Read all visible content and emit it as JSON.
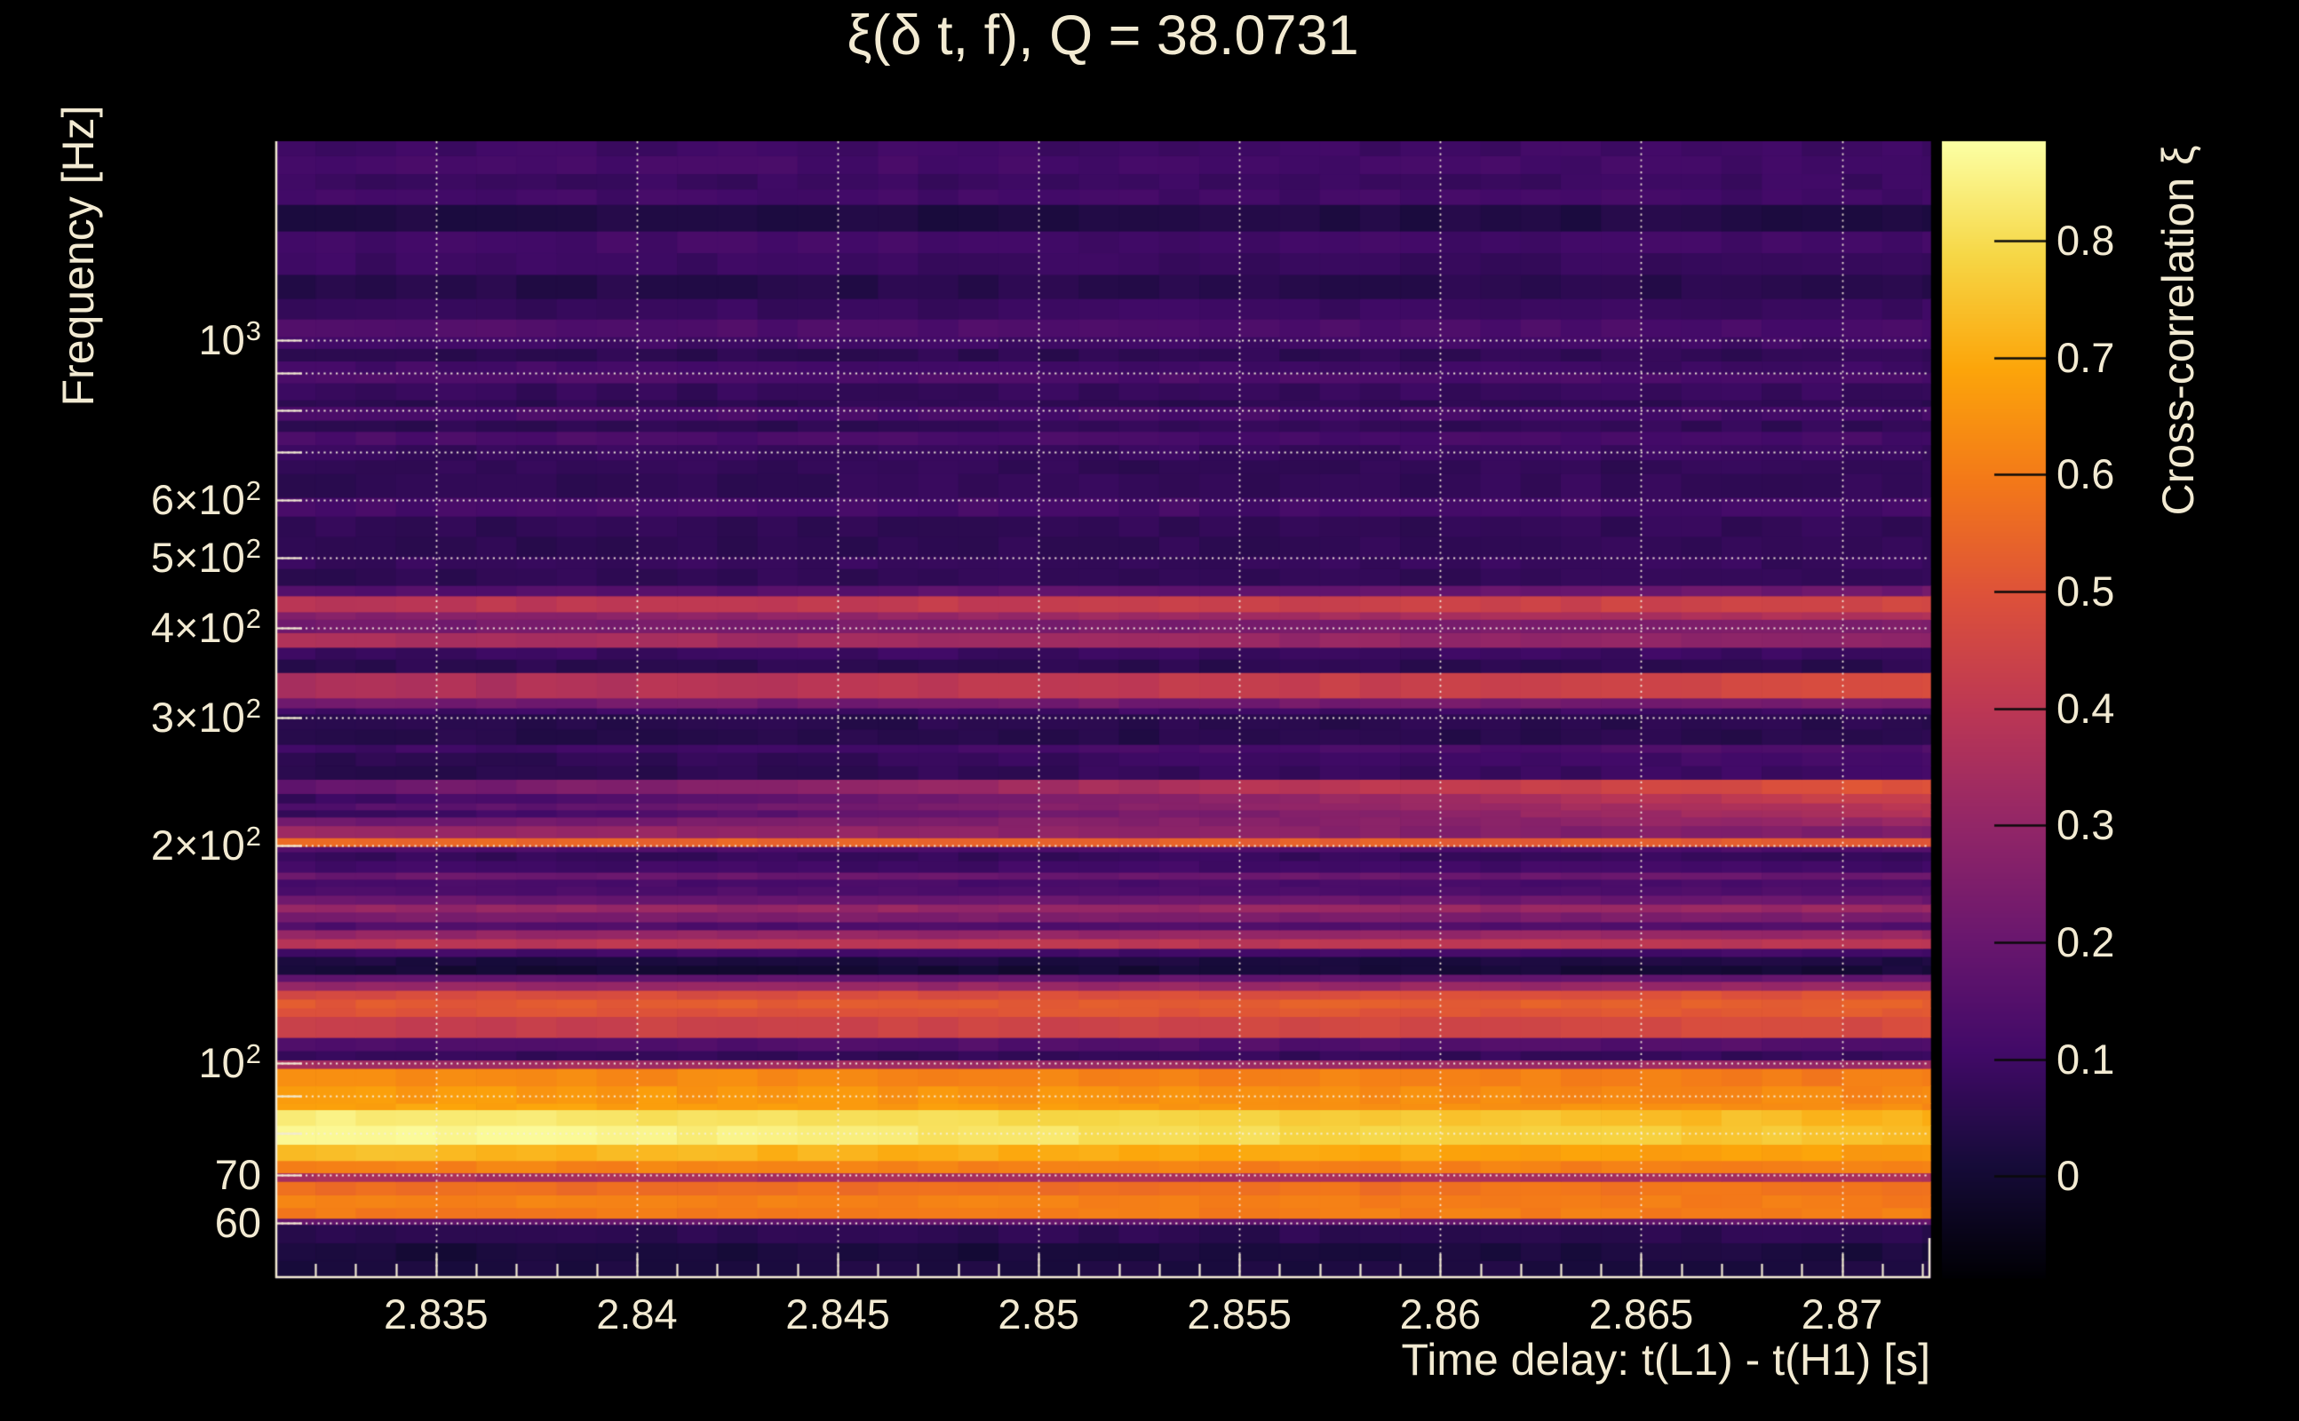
{
  "title": "ξ(δ t, f), Q = 38.0731",
  "x_axis": {
    "label": "Time delay: t(L1) - t(H1) [s]",
    "range": [
      2.831,
      2.8722
    ],
    "minor_tick_step": 0.001,
    "ticks": [
      {
        "value": 2.835,
        "label": "2.835"
      },
      {
        "value": 2.84,
        "label": "2.84"
      },
      {
        "value": 2.845,
        "label": "2.845"
      },
      {
        "value": 2.85,
        "label": "2.85"
      },
      {
        "value": 2.855,
        "label": "2.855"
      },
      {
        "value": 2.86,
        "label": "2.86"
      },
      {
        "value": 2.865,
        "label": "2.865"
      },
      {
        "value": 2.87,
        "label": "2.87"
      }
    ]
  },
  "y_axis": {
    "label": "Frequency [Hz]",
    "scale": "log",
    "range": [
      50.4,
      1884
    ],
    "ticks": [
      {
        "value": 1000,
        "mantissa": "10",
        "exp": "3"
      },
      {
        "value": 600,
        "mantissa": "6×10",
        "exp": "2"
      },
      {
        "value": 500,
        "mantissa": "5×10",
        "exp": "2"
      },
      {
        "value": 400,
        "mantissa": "4×10",
        "exp": "2"
      },
      {
        "value": 300,
        "mantissa": "3×10",
        "exp": "2"
      },
      {
        "value": 200,
        "mantissa": "2×10",
        "exp": "2"
      },
      {
        "value": 100,
        "mantissa": "10",
        "exp": "2"
      },
      {
        "value": 70,
        "mantissa": "70",
        "exp": ""
      },
      {
        "value": 60,
        "mantissa": "60",
        "exp": ""
      }
    ],
    "gridlines": [
      60,
      70,
      80,
      90,
      100,
      200,
      300,
      400,
      500,
      600,
      700,
      800,
      900,
      1000
    ]
  },
  "colorbar": {
    "label": "Cross-correlation ξ",
    "vmin": -0.087,
    "vmax": 0.885,
    "ticks": [
      {
        "value": 0.8,
        "label": "0.8"
      },
      {
        "value": 0.7,
        "label": "0.7"
      },
      {
        "value": 0.6,
        "label": "0.6"
      },
      {
        "value": 0.5,
        "label": "0.5"
      },
      {
        "value": 0.4,
        "label": "0.4"
      },
      {
        "value": 0.3,
        "label": "0.3"
      },
      {
        "value": 0.2,
        "label": "0.2"
      },
      {
        "value": 0.1,
        "label": "0.1"
      },
      {
        "value": 0,
        "label": "0"
      }
    ]
  },
  "colors": {
    "background": "#000000",
    "text": "#f2ead2",
    "grid": "rgba(246,240,222,0.92)",
    "spine": "#f2ead2",
    "colorbar_tick": "#0a0a0a"
  },
  "chart_data": {
    "type": "heatmap",
    "title": "ξ(δ t, f), Q = 38.0731",
    "xlabel": "Time delay: t(L1) - t(H1) [s]",
    "ylabel": "Frequency [Hz]",
    "x_range": [
      2.831,
      2.8722
    ],
    "y_range": [
      50.4,
      1884
    ],
    "x_cell_width": 0.001,
    "value_name": "Cross-correlation ξ",
    "value_range": [
      -0.087,
      0.885
    ],
    "colormap": "inferno",
    "colormap_anchors": [
      [
        0.0,
        0,
        0,
        4
      ],
      [
        0.1,
        22,
        11,
        57
      ],
      [
        0.2,
        66,
        10,
        104
      ],
      [
        0.3,
        106,
        23,
        110
      ],
      [
        0.4,
        147,
        38,
        103
      ],
      [
        0.5,
        188,
        55,
        84
      ],
      [
        0.6,
        221,
        81,
        58
      ],
      [
        0.7,
        243,
        120,
        25
      ],
      [
        0.8,
        252,
        165,
        10
      ],
      [
        0.9,
        246,
        215,
        70
      ],
      [
        1.0,
        252,
        255,
        164
      ]
    ],
    "bands_format": [
      "freq_lo_hz",
      "freq_hi_hz",
      "xi_at_left_edge",
      "xi_at_right_edge"
    ],
    "bands": [
      [
        50.4,
        53.3,
        0.04,
        0.04
      ],
      [
        53.3,
        56.4,
        0.005,
        0.01
      ],
      [
        56.4,
        59.8,
        0.07,
        0.07
      ],
      [
        59.8,
        61.0,
        0.19,
        0.19
      ],
      [
        61.0,
        63.1,
        0.6,
        0.61
      ],
      [
        63.1,
        65.7,
        0.62,
        0.6
      ],
      [
        65.7,
        68.6,
        0.56,
        0.58
      ],
      [
        68.6,
        70.5,
        0.36,
        0.36
      ],
      [
        70.5,
        73.3,
        0.62,
        0.61
      ],
      [
        73.3,
        77.2,
        0.74,
        0.67
      ],
      [
        77.2,
        82.0,
        0.87,
        0.73
      ],
      [
        82.0,
        86.2,
        0.84,
        0.71
      ],
      [
        86.2,
        88.0,
        0.7,
        0.64
      ],
      [
        88.0,
        93.0,
        0.66,
        0.61
      ],
      [
        93.0,
        98.3,
        0.63,
        0.59
      ],
      [
        98.3,
        101,
        0.34,
        0.32
      ],
      [
        101,
        104,
        0.06,
        0.07
      ],
      [
        104,
        108.5,
        0.14,
        0.15
      ],
      [
        108.5,
        116,
        0.42,
        0.47
      ],
      [
        116,
        119.2,
        0.5,
        0.52
      ],
      [
        119.2,
        122.6,
        0.51,
        0.53
      ],
      [
        122.6,
        126.1,
        0.47,
        0.5
      ],
      [
        126.1,
        129.7,
        0.3,
        0.31
      ],
      [
        129.7,
        132.7,
        0.18,
        0.19
      ],
      [
        132.7,
        136.5,
        0.01,
        0.02
      ],
      [
        136.5,
        140.4,
        0.03,
        0.03
      ],
      [
        140.4,
        144.1,
        0.11,
        0.11
      ],
      [
        144.1,
        148.6,
        0.41,
        0.41
      ],
      [
        148.6,
        152.9,
        0.31,
        0.32
      ],
      [
        152.9,
        156.8,
        0.14,
        0.14
      ],
      [
        156.8,
        161.8,
        0.23,
        0.23
      ],
      [
        161.8,
        165.9,
        0.3,
        0.31
      ],
      [
        165.9,
        170.7,
        0.21,
        0.21
      ],
      [
        170.7,
        175.6,
        0.14,
        0.14
      ],
      [
        175.6,
        179.6,
        0.13,
        0.13
      ],
      [
        179.6,
        183.7,
        0.2,
        0.2
      ],
      [
        183.7,
        190.6,
        0.09,
        0.09
      ],
      [
        190.6,
        196.0,
        0.07,
        0.07
      ],
      [
        196.0,
        199.4,
        0.14,
        0.14
      ],
      [
        199.4,
        205,
        0.55,
        0.51
      ],
      [
        205,
        213,
        0.32,
        0.24
      ],
      [
        213,
        219,
        0.2,
        0.3
      ],
      [
        219,
        224,
        0.07,
        0.38
      ],
      [
        224,
        229,
        0.15,
        0.4
      ],
      [
        229,
        236,
        0.07,
        0.44
      ],
      [
        236,
        247,
        0.18,
        0.5
      ],
      [
        247,
        269,
        0.05,
        0.11
      ],
      [
        269,
        276,
        0.1,
        0.14
      ],
      [
        276,
        304,
        0.05,
        0.06
      ],
      [
        304,
        310,
        0.11,
        0.11
      ],
      [
        310,
        320,
        0.23,
        0.23
      ],
      [
        320,
        347,
        0.36,
        0.48
      ],
      [
        347,
        362,
        0.05,
        0.05
      ],
      [
        362,
        376,
        0.09,
        0.09
      ],
      [
        376,
        394,
        0.36,
        0.28
      ],
      [
        394,
        411,
        0.22,
        0.24
      ],
      [
        411,
        421,
        0.26,
        0.38
      ],
      [
        421,
        443,
        0.4,
        0.46
      ],
      [
        443,
        458,
        0.14,
        0.22
      ],
      [
        458,
        483,
        0.07,
        0.08
      ],
      [
        483,
        502,
        0.09,
        0.09
      ],
      [
        502,
        571,
        0.07,
        0.08
      ],
      [
        571,
        606,
        0.11,
        0.1
      ],
      [
        606,
        654,
        0.08,
        0.09
      ],
      [
        654,
        683,
        0.08,
        0.08
      ],
      [
        683,
        717,
        0.09,
        0.1
      ],
      [
        717,
        748,
        0.13,
        0.11
      ],
      [
        748,
        775,
        0.07,
        0.08
      ],
      [
        775,
        810,
        0.13,
        0.11
      ],
      [
        810,
        827,
        0.06,
        0.07
      ],
      [
        827,
        873,
        0.08,
        0.09
      ],
      [
        873,
        901,
        0.14,
        0.12
      ],
      [
        901,
        936,
        0.12,
        0.1
      ],
      [
        936,
        974,
        0.07,
        0.08
      ],
      [
        974,
        1011,
        0.11,
        0.11
      ],
      [
        1011,
        1070,
        0.14,
        0.12
      ],
      [
        1070,
        1142,
        0.09,
        0.1
      ],
      [
        1142,
        1233,
        0.04,
        0.05
      ],
      [
        1233,
        1416,
        0.1,
        0.09
      ],
      [
        1416,
        1541,
        0.04,
        0.05
      ],
      [
        1541,
        1700,
        0.1,
        0.1
      ],
      [
        1700,
        1800,
        0.12,
        0.11
      ],
      [
        1800,
        1884,
        0.11,
        0.11
      ]
    ],
    "grid": true,
    "legend_position": "right-colorbar"
  }
}
